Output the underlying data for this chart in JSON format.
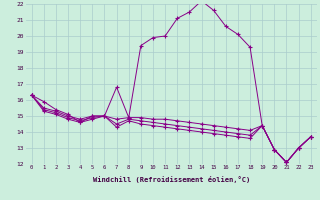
{
  "xlabel": "Windchill (Refroidissement éolien,°C)",
  "background_color": "#cceedd",
  "grid_color": "#aacccc",
  "line_color": "#880088",
  "hours": [
    0,
    1,
    2,
    3,
    4,
    5,
    6,
    7,
    8,
    9,
    10,
    11,
    12,
    13,
    14,
    15,
    16,
    17,
    18,
    19,
    20,
    21,
    22,
    23
  ],
  "series1": [
    16.3,
    15.9,
    15.4,
    15.1,
    14.6,
    15.0,
    15.0,
    16.8,
    14.9,
    19.4,
    19.9,
    20.0,
    21.1,
    21.5,
    22.2,
    21.6,
    20.6,
    20.1,
    19.3,
    14.4,
    12.9,
    12.1,
    13.0,
    13.7
  ],
  "series2": [
    16.3,
    15.5,
    15.3,
    15.0,
    14.8,
    15.0,
    15.0,
    14.8,
    14.9,
    14.9,
    14.8,
    14.8,
    14.7,
    14.6,
    14.5,
    14.4,
    14.3,
    14.2,
    14.1,
    14.4,
    12.9,
    12.1,
    13.0,
    13.7
  ],
  "series3": [
    16.3,
    15.4,
    15.2,
    14.9,
    14.7,
    14.9,
    15.0,
    14.5,
    14.8,
    14.7,
    14.6,
    14.5,
    14.4,
    14.3,
    14.2,
    14.1,
    14.0,
    13.9,
    13.8,
    14.4,
    12.9,
    12.1,
    13.0,
    13.7
  ],
  "series4": [
    16.3,
    15.3,
    15.1,
    14.8,
    14.6,
    14.8,
    15.0,
    14.3,
    14.7,
    14.5,
    14.4,
    14.3,
    14.2,
    14.1,
    14.0,
    13.9,
    13.8,
    13.7,
    13.6,
    14.4,
    12.9,
    12.1,
    13.0,
    13.7
  ],
  "ylim": [
    12,
    22
  ],
  "yticks": [
    12,
    13,
    14,
    15,
    16,
    17,
    18,
    19,
    20,
    21,
    22
  ]
}
